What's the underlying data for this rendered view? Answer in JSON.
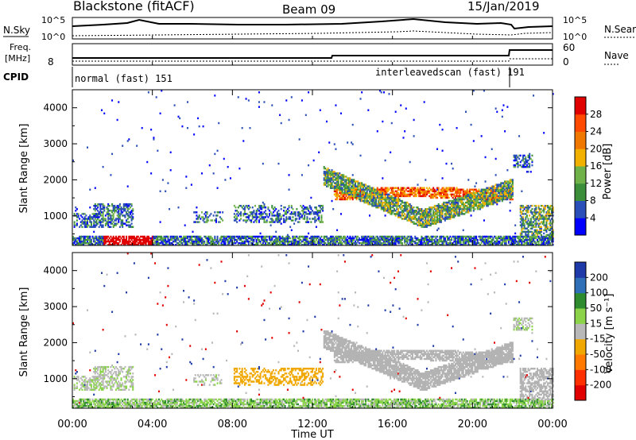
{
  "header": {
    "title": "Blackstone (fitACF)",
    "beam": "Beam 09",
    "date": "15/Jan/2019"
  },
  "top_panels": {
    "nsky_label": "N.Sky",
    "nsky_ticks": [
      "10^5",
      "10^0"
    ],
    "nsearch_label": "N.Search",
    "nsearch_ticks": [
      "10^5",
      "10^0"
    ],
    "freq_label": "Freq.",
    "freq_unit": "[MHz]",
    "freq_ticks": [
      "8"
    ],
    "nave_label": "Nave",
    "nave_ticks": [
      "60",
      "0"
    ],
    "cpid_label": "CPID",
    "cpid_modes": [
      "normal (fast) 151",
      "interleavedscan (fast) 191"
    ]
  },
  "colors": {
    "power": [
      "#0000ff",
      "#2b4fb8",
      "#3b8f3b",
      "#6fb24a",
      "#f2b000",
      "#f07800",
      "#ff4a00",
      "#e00000"
    ],
    "velocity": [
      "#1e3aa8",
      "#2f6fb8",
      "#2e8b2e",
      "#8bd44a",
      "#b8b8b8",
      "#f0a800",
      "#ff7800",
      "#ff3000",
      "#e00000"
    ],
    "gray": "#b3b3b3"
  },
  "chart_data": [
    {
      "type": "heatmap",
      "name": "power",
      "ylabel": "Slant Range [km]",
      "xlabel": "Time UT",
      "x_ticks": [
        "00:00",
        "04:00",
        "08:00",
        "12:00",
        "16:00",
        "20:00",
        "00:00"
      ],
      "x_range": [
        0,
        24
      ],
      "y_ticks": [
        "1000",
        "2000",
        "3000",
        "4000"
      ],
      "y_range": [
        180,
        4500
      ],
      "colorbar_label": "Power [dB]",
      "colorbar_ticks": [
        "4",
        "8",
        "12",
        "16",
        "20",
        "24",
        "28"
      ],
      "colorbar_range": [
        0,
        32
      ]
    },
    {
      "type": "heatmap",
      "name": "velocity",
      "ylabel": "Slant Range [km]",
      "xlabel": "Time UT",
      "x_ticks": [
        "00:00",
        "04:00",
        "08:00",
        "12:00",
        "16:00",
        "20:00",
        "00:00"
      ],
      "x_range": [
        0,
        24
      ],
      "y_ticks": [
        "1000",
        "2000",
        "3000",
        "4000"
      ],
      "y_range": [
        180,
        4500
      ],
      "colorbar_label": "Velocity [m s⁻¹]",
      "colorbar_ticks": [
        "200",
        "100",
        "50",
        "15",
        "-15",
        "-50",
        "-100",
        "-200"
      ],
      "colorbar_range": [
        -250,
        250
      ]
    }
  ]
}
